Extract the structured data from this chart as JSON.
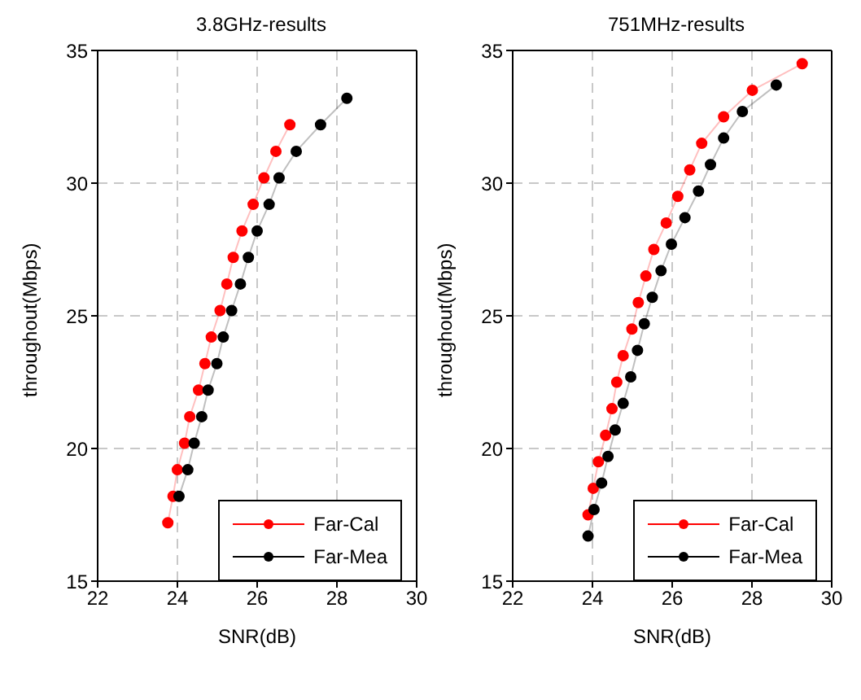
{
  "chart_data": [
    {
      "type": "line",
      "title": "3.8GHz-results",
      "xlabel": "SNR(dB)",
      "ylabel": "throughout(Mbps)",
      "xlim": [
        22,
        30
      ],
      "xticks": [
        22,
        24,
        26,
        28,
        30
      ],
      "ylim": [
        15,
        35
      ],
      "yticks": [
        15,
        20,
        25,
        30,
        35
      ],
      "grid": true,
      "legend": "bottom right",
      "marker": "circle",
      "line_style": "solid",
      "series": [
        {
          "name": "Far-Cal",
          "color": "#ff0000",
          "x": [
            23.76,
            23.89,
            24.0,
            24.18,
            24.31,
            24.53,
            24.69,
            24.85,
            25.07,
            25.24,
            25.4,
            25.62,
            25.9,
            26.17,
            26.47,
            26.82
          ],
          "values": [
            17.2,
            18.2,
            19.2,
            20.2,
            21.2,
            22.2,
            23.2,
            24.2,
            25.2,
            26.2,
            27.2,
            28.2,
            29.2,
            30.2,
            31.2,
            32.2
          ]
        },
        {
          "name": "Far-Mea",
          "color": "#000000",
          "x": [
            24.04,
            24.26,
            24.42,
            24.61,
            24.77,
            24.99,
            25.15,
            25.36,
            25.58,
            25.78,
            26.0,
            26.3,
            26.55,
            26.98,
            27.59,
            28.25
          ],
          "values": [
            18.2,
            19.2,
            20.2,
            21.2,
            22.2,
            23.2,
            24.2,
            25.2,
            26.2,
            27.2,
            28.2,
            29.2,
            30.2,
            31.2,
            32.2,
            33.2
          ]
        }
      ]
    },
    {
      "type": "line",
      "title": "751MHz-results",
      "xlabel": "SNR(dB)",
      "ylabel": "throughout(Mbps)",
      "xlim": [
        22,
        30
      ],
      "xticks": [
        22,
        24,
        26,
        28,
        30
      ],
      "ylim": [
        15,
        35
      ],
      "yticks": [
        15,
        20,
        25,
        30,
        35
      ],
      "grid": true,
      "legend": "bottom right",
      "marker": "circle",
      "line_style": "solid",
      "series": [
        {
          "name": "Far-Cal",
          "color": "#ff0000",
          "x": [
            23.89,
            24.02,
            24.15,
            24.33,
            24.49,
            24.61,
            24.77,
            24.99,
            25.15,
            25.34,
            25.54,
            25.85,
            26.14,
            26.44,
            26.74,
            27.29,
            28.01,
            29.26
          ],
          "values": [
            17.5,
            18.5,
            19.5,
            20.5,
            21.5,
            22.5,
            23.5,
            24.5,
            25.5,
            26.5,
            27.5,
            28.5,
            29.5,
            30.5,
            31.5,
            32.5,
            33.5,
            34.5
          ]
        },
        {
          "name": "Far-Mea",
          "color": "#000000",
          "x": [
            23.89,
            24.04,
            24.23,
            24.39,
            24.57,
            24.77,
            24.96,
            25.13,
            25.3,
            25.5,
            25.72,
            25.98,
            26.32,
            26.66,
            26.96,
            27.29,
            27.76,
            28.61
          ],
          "values": [
            16.7,
            17.7,
            18.7,
            19.7,
            20.7,
            21.7,
            22.7,
            23.7,
            24.7,
            25.7,
            26.7,
            27.7,
            28.7,
            29.7,
            30.7,
            31.7,
            32.7,
            33.7
          ]
        }
      ]
    }
  ]
}
